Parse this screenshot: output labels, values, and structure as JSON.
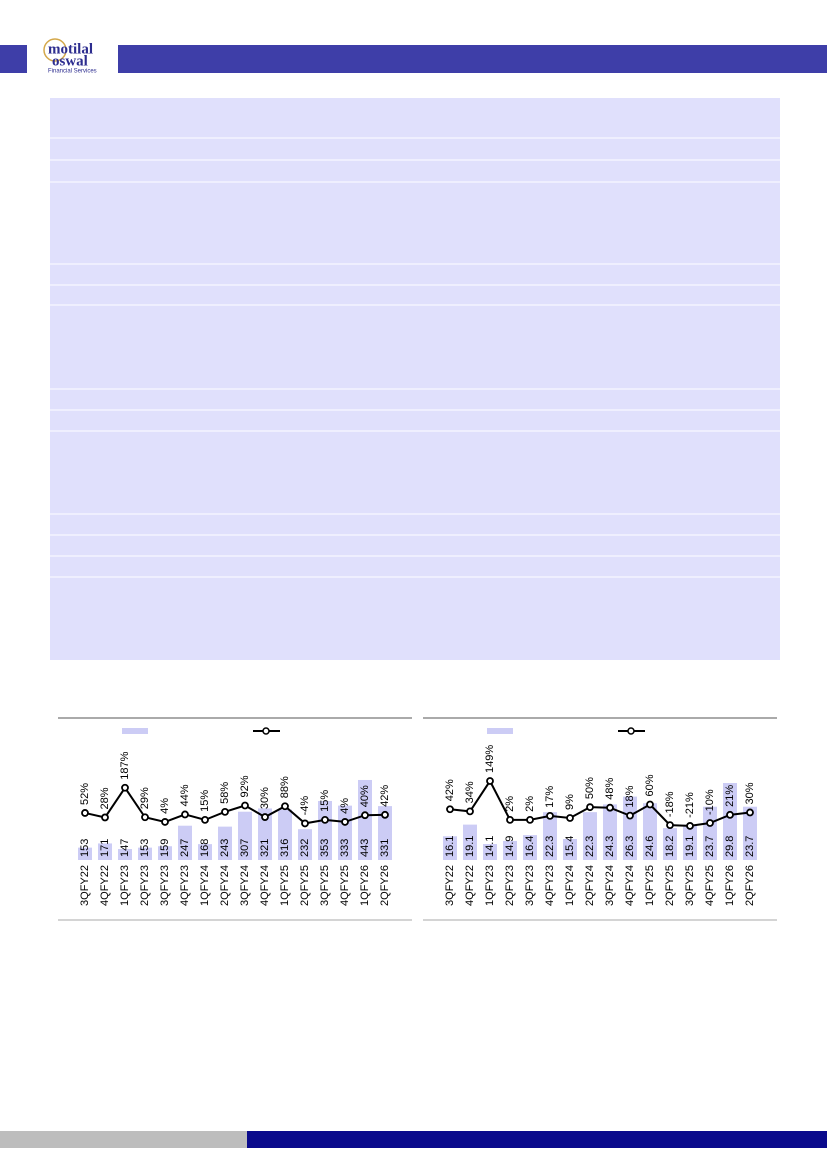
{
  "header": {
    "logo_line1": "motilal",
    "logo_line2": "oswal",
    "logo_line3": "Financial Services"
  },
  "chart_data": [
    {
      "type": "combo",
      "categories": [
        "3QFY22",
        "4QFY22",
        "1QFY23",
        "2QFY23",
        "3QFY23",
        "4QFY23",
        "1QFY24",
        "2QFY24",
        "3QFY24",
        "4QFY24",
        "1QFY25",
        "2QFY25",
        "3QFY25",
        "4QFY25",
        "1QFY26",
        "2QFY26"
      ],
      "ylim": [
        100,
        700
      ],
      "y2lim": [
        -200,
        550
      ],
      "series": [
        {
          "type": "bar",
          "color": "#ccccf5",
          "values": [
            153,
            171,
            147,
            153,
            159,
            247,
            168,
            243,
            307,
            321,
            316,
            232,
            353,
            333,
            443,
            331
          ]
        },
        {
          "type": "line",
          "axis": "y2",
          "color": "#000000",
          "values": [
            52,
            28,
            187,
            29,
            4,
            44,
            15,
            58,
            92,
            30,
            88,
            -4,
            15,
            4,
            40,
            42
          ],
          "value_labels": [
            "52%",
            "28%",
            "187%",
            "29%",
            "4%",
            "44%",
            "15%",
            "58%",
            "92%",
            "30%",
            "88%",
            "-4%",
            "15%",
            "4%",
            "40%",
            "42%"
          ]
        }
      ]
    },
    {
      "type": "combo",
      "categories": [
        "3QFY22",
        "4QFY22",
        "1QFY23",
        "2QFY23",
        "3QFY23",
        "4QFY23",
        "1QFY24",
        "2QFY24",
        "3QFY24",
        "4QFY24",
        "1QFY25",
        "2QFY25",
        "3QFY25",
        "4QFY25",
        "1QFY26",
        "2QFY26"
      ],
      "ylim": [
        10,
        46
      ],
      "y2lim": [
        -150,
        380
      ],
      "series": [
        {
          "type": "bar",
          "color": "#ccccf5",
          "values": [
            16.1,
            19.1,
            14.1,
            14.9,
            16.4,
            22.3,
            15.4,
            22.3,
            24.3,
            26.3,
            24.6,
            18.2,
            19.1,
            23.7,
            29.8,
            23.7
          ]
        },
        {
          "type": "line",
          "axis": "y2",
          "color": "#000000",
          "values": [
            42,
            34,
            149,
            2,
            2,
            17,
            9,
            50,
            48,
            18,
            60,
            -18,
            -21,
            -10,
            21,
            30
          ],
          "value_labels": [
            "42%",
            "34%",
            "149%",
            "2%",
            "2%",
            "17%",
            "9%",
            "50%",
            "48%",
            "18%",
            "60%",
            "-18%",
            "-21%",
            "-10%",
            "21%",
            "30%"
          ]
        }
      ]
    }
  ]
}
